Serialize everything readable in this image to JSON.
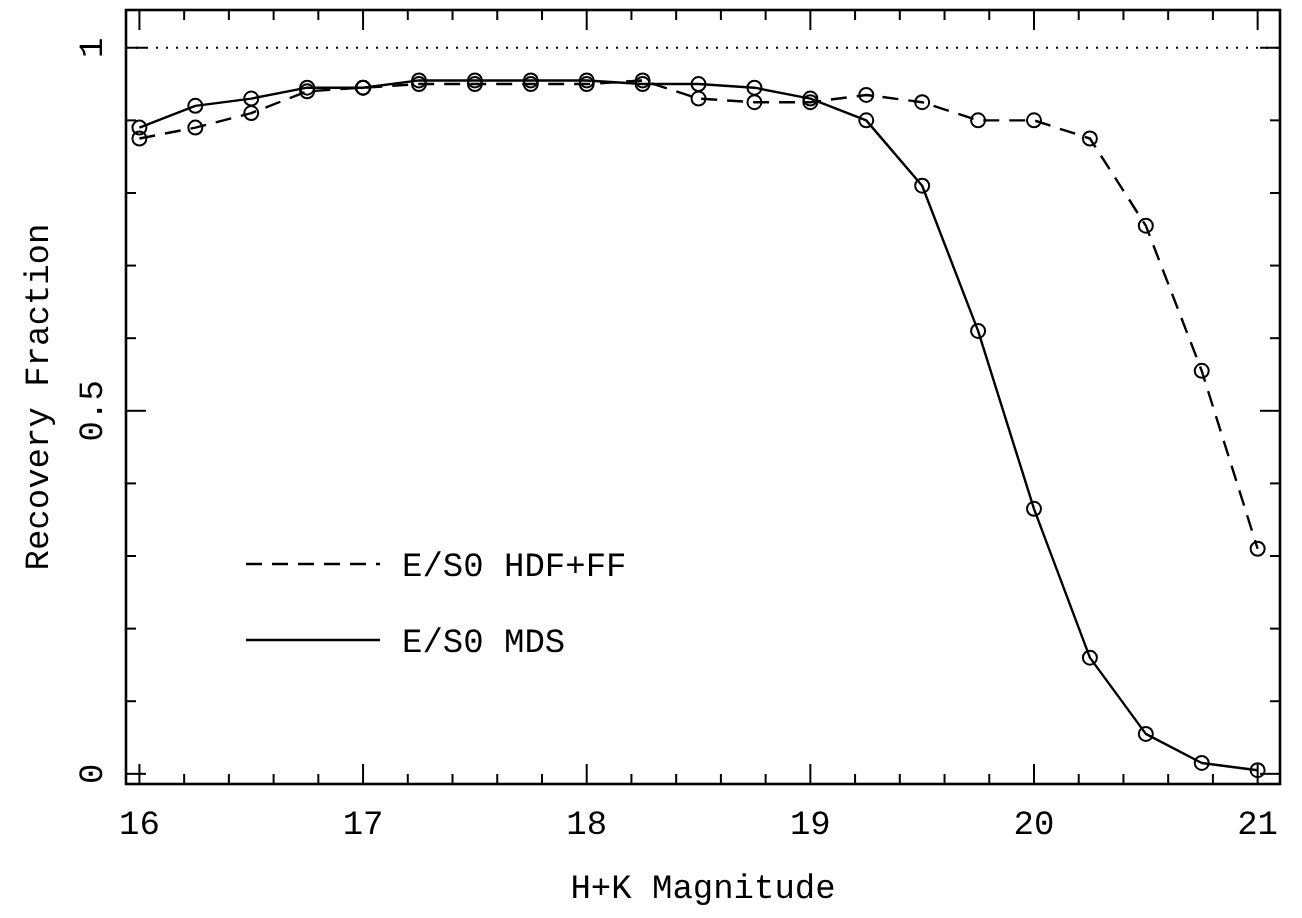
{
  "chart_data": {
    "type": "line",
    "xlabel": "H+K Magnitude",
    "ylabel": "Recovery Fraction",
    "x": [
      16,
      16.25,
      16.5,
      16.75,
      17,
      17.25,
      17.5,
      17.75,
      18,
      18.25,
      18.5,
      18.75,
      19,
      19.25,
      19.5,
      19.75,
      20,
      20.25,
      20.5,
      20.75,
      21
    ],
    "series": [
      {
        "name": "E/S0 HDF+FF",
        "color": "#000000",
        "line_style": "dashed",
        "values": [
          0.875,
          0.89,
          0.91,
          0.94,
          0.945,
          0.95,
          0.95,
          0.95,
          0.95,
          0.955,
          0.93,
          0.925,
          0.925,
          0.935,
          0.925,
          0.9,
          0.9,
          0.875,
          0.755,
          0.555,
          0.31
        ]
      },
      {
        "name": "E/S0 MDS",
        "color": "#000000",
        "line_style": "solid",
        "values": [
          0.89,
          0.92,
          0.93,
          0.945,
          0.945,
          0.955,
          0.955,
          0.955,
          0.955,
          0.95,
          0.95,
          0.945,
          0.93,
          0.9,
          0.81,
          0.61,
          0.365,
          0.16,
          0.055,
          0.015,
          0.005
        ]
      }
    ],
    "marker": "circle",
    "legend": "bottom left",
    "xlim": [
      15.94,
      21.1
    ],
    "ylim": [
      -0.014,
      1.052
    ],
    "xticks": [
      16,
      {
        "value": 16.2,
        "label": null
      },
      {
        "value": 16.4,
        "label": null
      },
      {
        "value": 16.6,
        "label": null
      },
      {
        "value": 16.8,
        "label": null
      },
      17,
      {
        "value": 17.2,
        "label": null
      },
      {
        "value": 17.4,
        "label": null
      },
      {
        "value": 17.6,
        "label": null
      },
      {
        "value": 17.8,
        "label": null
      },
      18,
      {
        "value": 18.2,
        "label": null
      },
      {
        "value": 18.4,
        "label": null
      },
      {
        "value": 18.6,
        "label": null
      },
      {
        "value": 18.8,
        "label": null
      },
      19,
      {
        "value": 19.2,
        "label": null
      },
      {
        "value": 19.4,
        "label": null
      },
      {
        "value": 19.6,
        "label": null
      },
      {
        "value": 19.8,
        "label": null
      },
      20,
      {
        "value": 20.2,
        "label": null
      },
      {
        "value": 20.4,
        "label": null
      },
      {
        "value": 20.6,
        "label": null
      },
      {
        "value": 20.8,
        "label": null
      },
      21
    ],
    "yticks": [
      0,
      {
        "value": 0.1,
        "label": null
      },
      {
        "value": 0.2,
        "label": null
      },
      {
        "value": 0.3,
        "label": null
      },
      {
        "value": 0.4,
        "label": null
      },
      0.5,
      {
        "value": 0.6,
        "label": null
      },
      {
        "value": 0.7,
        "label": null
      },
      {
        "value": 0.8,
        "label": null
      },
      {
        "value": 0.9,
        "label": null
      },
      1
    ],
    "ref_lines": [
      {
        "axis": "y",
        "value": 1,
        "line_style": "dotted"
      }
    ]
  }
}
